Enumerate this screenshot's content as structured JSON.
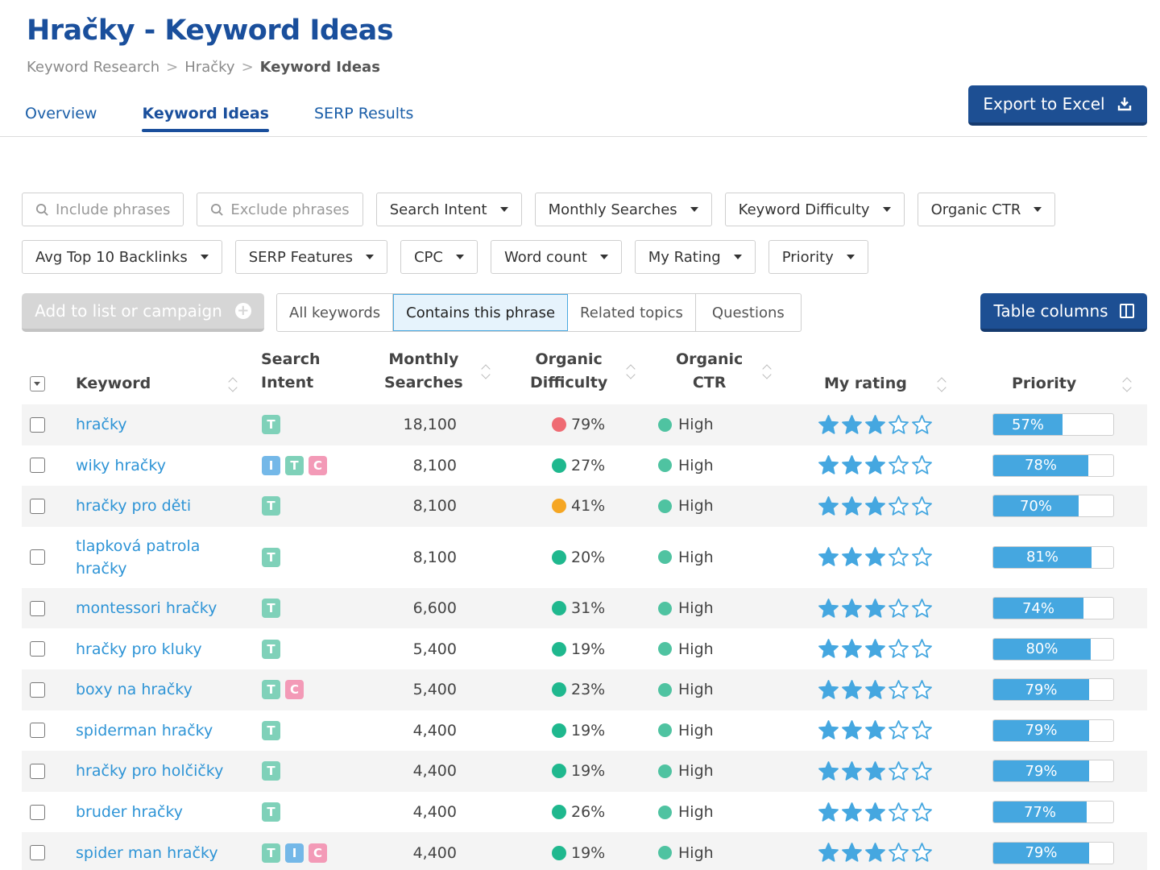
{
  "page": {
    "title": "Hračky - Keyword Ideas",
    "breadcrumb": [
      "Keyword Research",
      "Hračky",
      "Keyword Ideas"
    ],
    "breadcrumb_sep": ">"
  },
  "tabs": [
    {
      "label": "Overview",
      "active": false
    },
    {
      "label": "Keyword Ideas",
      "active": true
    },
    {
      "label": "SERP Results",
      "active": false
    }
  ],
  "export_button": {
    "label": "Export to Excel",
    "icon": "download-icon"
  },
  "filters": {
    "include_placeholder": "Include phrases",
    "exclude_placeholder": "Exclude phrases",
    "row1": [
      "Search Intent",
      "Monthly Searches",
      "Keyword Difficulty",
      "Organic CTR"
    ],
    "row2": [
      "Avg Top 10 Backlinks",
      "SERP Features",
      "CPC",
      "Word count",
      "My Rating",
      "Priority"
    ]
  },
  "add_button": {
    "label": "Add to list or campaign",
    "icon": "plus-circle-icon",
    "disabled": true
  },
  "segments": [
    {
      "label": "All keywords",
      "active": false
    },
    {
      "label": "Contains this phrase",
      "active": true
    },
    {
      "label": "Related topics",
      "active": false
    },
    {
      "label": "Questions",
      "active": false
    }
  ],
  "table_columns_button": {
    "label": "Table columns",
    "icon": "columns-icon"
  },
  "table": {
    "headers": {
      "keyword": "Keyword",
      "intent_1": "Search",
      "intent_2": "Intent",
      "ms_1": "Monthly",
      "ms_2": "Searches",
      "od_1": "Organic",
      "od_2": "Difficulty",
      "ctr_1": "Organic",
      "ctr_2": "CTR",
      "rating": "My rating",
      "priority": "Priority"
    },
    "colors": {
      "difficulty_hard": "#ef6b73",
      "difficulty_medium": "#f5a623",
      "difficulty_easy": "#1fb88e",
      "ctr_high": "#4fc3a1",
      "star": "#45a7e0",
      "priority_fill": "#45a7e0"
    },
    "rows": [
      {
        "keyword": "hračky",
        "intents": [
          "T"
        ],
        "searches": "18,100",
        "difficulty": "79%",
        "difficulty_level": "hard",
        "ctr": "High",
        "rating": 3,
        "priority": "57%",
        "priority_value": 57
      },
      {
        "keyword": "wiky hračky",
        "intents": [
          "I",
          "T",
          "C"
        ],
        "searches": "8,100",
        "difficulty": "27%",
        "difficulty_level": "easy",
        "ctr": "High",
        "rating": 3,
        "priority": "78%",
        "priority_value": 78
      },
      {
        "keyword": "hračky pro děti",
        "intents": [
          "T"
        ],
        "searches": "8,100",
        "difficulty": "41%",
        "difficulty_level": "medium",
        "ctr": "High",
        "rating": 3,
        "priority": "70%",
        "priority_value": 70
      },
      {
        "keyword": "tlapková patrola hračky",
        "intents": [
          "T"
        ],
        "searches": "8,100",
        "difficulty": "20%",
        "difficulty_level": "easy",
        "ctr": "High",
        "rating": 3,
        "priority": "81%",
        "priority_value": 81
      },
      {
        "keyword": "montessori hračky",
        "intents": [
          "T"
        ],
        "searches": "6,600",
        "difficulty": "31%",
        "difficulty_level": "easy",
        "ctr": "High",
        "rating": 3,
        "priority": "74%",
        "priority_value": 74
      },
      {
        "keyword": "hračky pro kluky",
        "intents": [
          "T"
        ],
        "searches": "5,400",
        "difficulty": "19%",
        "difficulty_level": "easy",
        "ctr": "High",
        "rating": 3,
        "priority": "80%",
        "priority_value": 80
      },
      {
        "keyword": "boxy na hračky",
        "intents": [
          "T",
          "C"
        ],
        "searches": "5,400",
        "difficulty": "23%",
        "difficulty_level": "easy",
        "ctr": "High",
        "rating": 3,
        "priority": "79%",
        "priority_value": 79
      },
      {
        "keyword": "spiderman hračky",
        "intents": [
          "T"
        ],
        "searches": "4,400",
        "difficulty": "19%",
        "difficulty_level": "easy",
        "ctr": "High",
        "rating": 3,
        "priority": "79%",
        "priority_value": 79
      },
      {
        "keyword": "hračky pro holčičky",
        "intents": [
          "T"
        ],
        "searches": "4,400",
        "difficulty": "19%",
        "difficulty_level": "easy",
        "ctr": "High",
        "rating": 3,
        "priority": "79%",
        "priority_value": 79
      },
      {
        "keyword": "bruder hračky",
        "intents": [
          "T"
        ],
        "searches": "4,400",
        "difficulty": "26%",
        "difficulty_level": "easy",
        "ctr": "High",
        "rating": 3,
        "priority": "77%",
        "priority_value": 77
      },
      {
        "keyword": "spider man hračky",
        "intents": [
          "T",
          "I",
          "C"
        ],
        "searches": "4,400",
        "difficulty": "19%",
        "difficulty_level": "easy",
        "ctr": "High",
        "rating": 3,
        "priority": "79%",
        "priority_value": 79
      }
    ]
  }
}
